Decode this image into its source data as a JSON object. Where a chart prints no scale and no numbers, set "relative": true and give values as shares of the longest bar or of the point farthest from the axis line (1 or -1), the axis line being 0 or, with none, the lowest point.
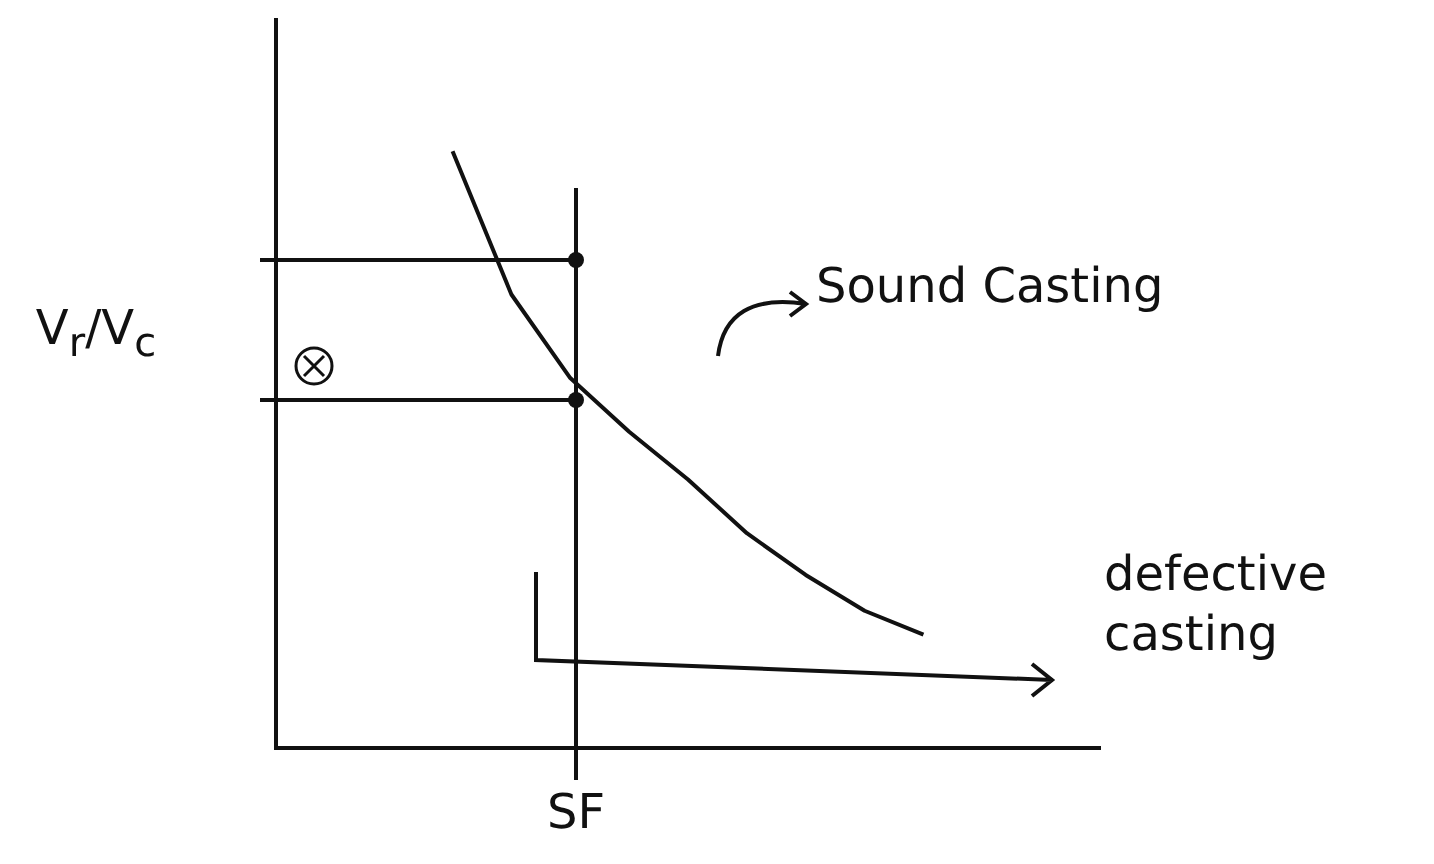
{
  "chart_data": {
    "type": "line",
    "relative": true,
    "ylabel": "V$_{r}$/V$_{c}$",
    "xlabel": "SF",
    "legend": false,
    "marker": "none",
    "line_style": "solid",
    "categories": [
      null,
      null,
      null,
      null,
      null,
      null,
      null,
      null,
      null,
      null,
      null,
      null,
      null,
      null,
      null
    ],
    "series": [
      {
        "color": "#111111",
        "values": [
          null,
          null,
          null,
          1,
          0.76,
          0.62,
          0.53,
          0.45,
          0.36,
          0.29,
          0.23,
          0.19,
          null,
          null,
          null
        ]
      }
    ],
    "annotations": [
      "Sound Casting",
      "defective casting"
    ]
  }
}
